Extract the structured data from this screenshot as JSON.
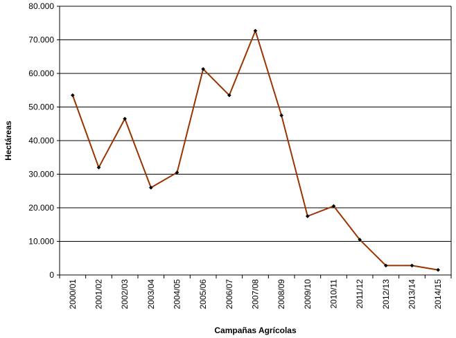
{
  "chart_data": {
    "type": "line",
    "title": "",
    "xlabel": "Campañas Agrícolas",
    "ylabel": "Hectáreas",
    "categories": [
      "2000/01",
      "2001/02",
      "2002/03",
      "2003/04",
      "2004/05",
      "2005/06",
      "2006/07",
      "2007/08",
      "2008/09",
      "2009/10",
      "2010/11",
      "2011/12",
      "2012/13",
      "2013/14",
      "2014/15"
    ],
    "series": [
      {
        "values": [
          53500,
          32000,
          46500,
          26000,
          30500,
          61300,
          53500,
          72700,
          47500,
          17500,
          20500,
          10500,
          2800,
          2800,
          1500
        ]
      }
    ],
    "ylim": [
      0,
      80000
    ],
    "yticks": [
      0,
      10000,
      20000,
      30000,
      40000,
      50000,
      60000,
      70000,
      80000
    ],
    "ytick_labels": [
      "0",
      "10.000",
      "20.000",
      "30.000",
      "40.000",
      "50.000",
      "60.000",
      "70.000",
      "80.000"
    ],
    "grid": true,
    "line_color": "#993300",
    "marker_color": "#000000"
  }
}
